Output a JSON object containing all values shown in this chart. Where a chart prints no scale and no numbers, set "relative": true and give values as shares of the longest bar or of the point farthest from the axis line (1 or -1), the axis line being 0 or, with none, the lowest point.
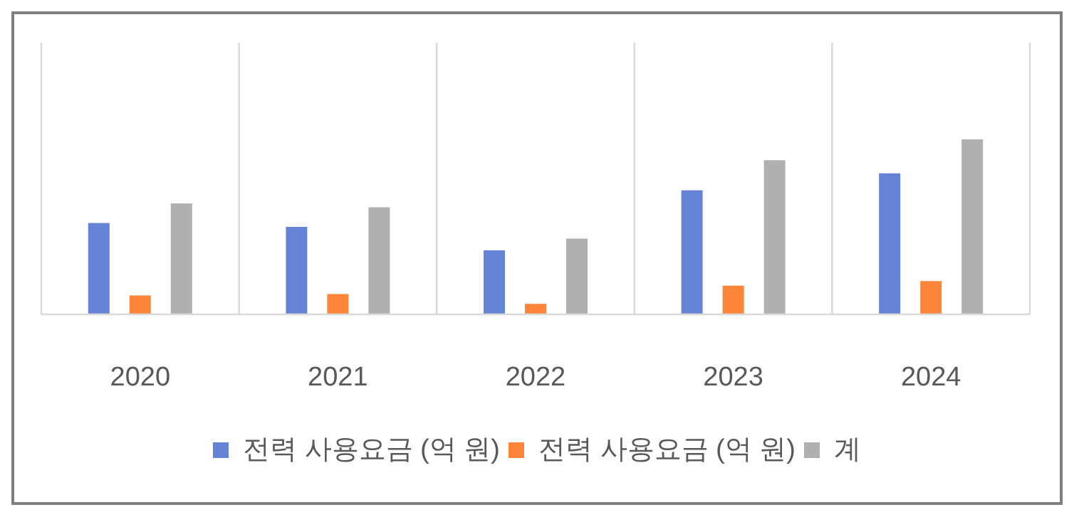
{
  "chart_data": {
    "type": "bar",
    "relative": true,
    "categories": [
      "2020",
      "2021",
      "2022",
      "2023",
      "2024"
    ],
    "series": [
      {
        "name": "전력 사용요금 (억 원)",
        "color": "#6483d7",
        "values": [
          0.522,
          0.5,
          0.366,
          0.709,
          0.806
        ]
      },
      {
        "name": "전력 사용요금 (억 원)",
        "color": "#fd853a",
        "values": [
          0.108,
          0.116,
          0.06,
          0.164,
          0.19
        ]
      },
      {
        "name": "계",
        "color": "#b0b0b0",
        "values": [
          0.634,
          0.612,
          0.433,
          0.881,
          1
        ]
      }
    ],
    "grid": "x",
    "legend": "bottom"
  }
}
